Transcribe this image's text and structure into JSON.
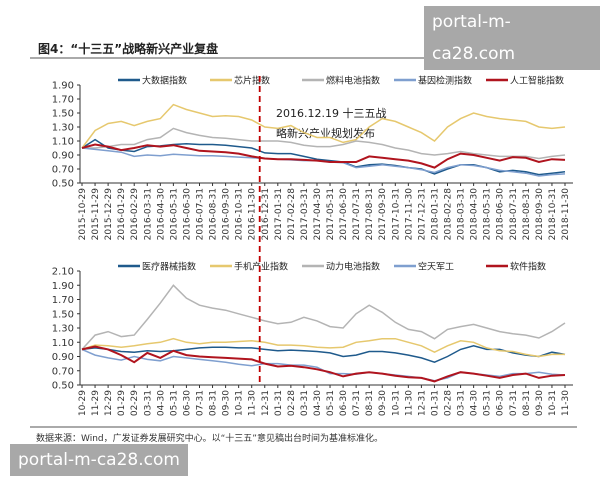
{
  "figure_title": "图4：“十三五”战略新兴产业复盘",
  "source_note": "数据来源：Wind，广发证券发展研究中心。以“十三五”意见稿出台时间为基准标准化。",
  "watermark": "portal-m-ca28.com",
  "event_marker": {
    "date": "2016-12-19",
    "label_line1": "2016.12.19 十三五战",
    "label_line2": "略新兴产业规划发布",
    "color": "#c00000"
  },
  "chart_data": [
    {
      "type": "line",
      "ylim": [
        0.5,
        1.9
      ],
      "yticks": [
        "1.90",
        "1.70",
        "1.50",
        "1.30",
        "1.10",
        "0.90",
        "0.70",
        "0.50"
      ],
      "x": [
        "2015-10-29",
        "2015-11-29",
        "2015-12-29",
        "2016-01-29",
        "2016-02-29",
        "2016-03-31",
        "2016-04-30",
        "2016-05-31",
        "2016-06-30",
        "2016-07-31",
        "2016-08-31",
        "2016-09-30",
        "2016-10-31",
        "2016-11-30",
        "2016-12-31",
        "2017-01-31",
        "2017-02-28",
        "2017-03-31",
        "2017-04-30",
        "2017-05-31",
        "2017-06-30",
        "2017-07-31",
        "2017-08-31",
        "2017-09-30",
        "2017-10-31",
        "2017-11-30",
        "2017-12-31",
        "2018-01-31",
        "2018-02-28",
        "2018-03-31",
        "2018-04-30",
        "2018-05-31",
        "2018-06-30",
        "2018-07-31",
        "2018-08-31",
        "2018-09-30",
        "2018-10-31",
        "2018-11-30"
      ],
      "legend": "top",
      "series": [
        {
          "name": "大数据指数",
          "color": "#1f5a8c",
          "values": [
            1.0,
            1.12,
            1.0,
            0.97,
            0.95,
            1.02,
            1.03,
            1.05,
            1.06,
            1.05,
            1.05,
            1.04,
            1.02,
            1.0,
            0.93,
            0.92,
            0.92,
            0.88,
            0.84,
            0.82,
            0.8,
            0.73,
            0.76,
            0.77,
            0.75,
            0.72,
            0.7,
            0.63,
            0.7,
            0.76,
            0.76,
            0.72,
            0.66,
            0.68,
            0.66,
            0.62,
            0.64,
            0.66
          ]
        },
        {
          "name": "芯片指数",
          "color": "#e6c86e",
          "values": [
            1.0,
            1.25,
            1.35,
            1.38,
            1.32,
            1.38,
            1.42,
            1.62,
            1.55,
            1.5,
            1.45,
            1.46,
            1.45,
            1.4,
            1.3,
            1.28,
            1.32,
            1.22,
            1.15,
            1.15,
            1.08,
            1.12,
            1.3,
            1.42,
            1.38,
            1.3,
            1.22,
            1.1,
            1.3,
            1.42,
            1.5,
            1.45,
            1.42,
            1.4,
            1.38,
            1.3,
            1.28,
            1.3
          ]
        },
        {
          "name": "燃料电池指数",
          "color": "#b4b4b4",
          "values": [
            1.0,
            1.0,
            1.02,
            1.05,
            1.05,
            1.12,
            1.15,
            1.28,
            1.22,
            1.18,
            1.15,
            1.14,
            1.12,
            1.1,
            1.1,
            1.1,
            1.08,
            1.04,
            1.02,
            1.02,
            1.05,
            1.1,
            1.08,
            1.05,
            1.0,
            0.97,
            0.92,
            0.9,
            0.92,
            0.95,
            0.92,
            0.9,
            0.88,
            0.88,
            0.88,
            0.85,
            0.88,
            0.9
          ]
        },
        {
          "name": "基因检测指数",
          "color": "#7f9fcf",
          "values": [
            1.0,
            0.98,
            0.96,
            0.94,
            0.88,
            0.9,
            0.89,
            0.91,
            0.9,
            0.89,
            0.89,
            0.88,
            0.87,
            0.86,
            0.85,
            0.84,
            0.83,
            0.82,
            0.82,
            0.8,
            0.79,
            0.72,
            0.74,
            0.76,
            0.74,
            0.72,
            0.69,
            0.65,
            0.72,
            0.76,
            0.75,
            0.72,
            0.68,
            0.66,
            0.64,
            0.6,
            0.62,
            0.63
          ]
        },
        {
          "name": "人工智能指数",
          "color": "#b0141e",
          "values": [
            1.0,
            1.05,
            1.02,
            0.97,
            1.0,
            1.04,
            1.02,
            1.04,
            1.0,
            0.96,
            0.95,
            0.94,
            0.92,
            0.88,
            0.85,
            0.84,
            0.84,
            0.83,
            0.82,
            0.8,
            0.8,
            0.8,
            0.88,
            0.86,
            0.84,
            0.82,
            0.78,
            0.72,
            0.84,
            0.92,
            0.9,
            0.86,
            0.82,
            0.87,
            0.86,
            0.8,
            0.84,
            0.83
          ]
        }
      ]
    },
    {
      "type": "line",
      "ylim": [
        0.5,
        2.1
      ],
      "yticks": [
        "2.10",
        "1.90",
        "1.70",
        "1.50",
        "1.30",
        "1.10",
        "0.90",
        "0.70",
        "0.50"
      ],
      "x": [
        "2015-10-29",
        "2015-11-29",
        "2015-12-29",
        "2016-01-29",
        "2016-02-29",
        "2016-03-31",
        "2016-04-30",
        "2016-05-31",
        "2016-06-30",
        "2016-07-31",
        "2016-08-31",
        "2016-09-30",
        "2016-10-31",
        "2016-11-30",
        "2016-12-31",
        "2017-01-31",
        "2017-02-28",
        "2017-03-31",
        "2017-04-30",
        "2017-05-31",
        "2017-06-30",
        "2017-07-31",
        "2017-08-31",
        "2017-09-30",
        "2017-10-31",
        "2017-11-30",
        "2017-12-31",
        "2018-01-31",
        "2018-02-28",
        "2018-03-31",
        "2018-04-30",
        "2018-05-31",
        "2018-06-30",
        "2018-07-31",
        "2018-08-31",
        "2018-09-30",
        "2018-10-31",
        "2018-11-30"
      ],
      "legend": "top",
      "series": [
        {
          "name": "医疗器械指数",
          "color": "#1f5a8c",
          "values": [
            1.0,
            1.02,
            1.0,
            0.97,
            0.96,
            0.98,
            0.97,
            0.98,
            1.0,
            1.02,
            1.03,
            1.03,
            1.02,
            1.02,
            1.0,
            0.98,
            0.99,
            0.98,
            0.97,
            0.95,
            0.9,
            0.92,
            0.97,
            0.97,
            0.95,
            0.92,
            0.88,
            0.82,
            0.9,
            1.0,
            1.05,
            1.0,
            1.0,
            0.95,
            0.92,
            0.9,
            0.96,
            0.93
          ]
        },
        {
          "name": "手机产业指数",
          "color": "#e6c86e",
          "values": [
            1.0,
            1.06,
            1.05,
            1.03,
            1.05,
            1.08,
            1.1,
            1.15,
            1.1,
            1.08,
            1.1,
            1.1,
            1.11,
            1.12,
            1.1,
            1.06,
            1.06,
            1.05,
            1.03,
            1.02,
            1.03,
            1.1,
            1.12,
            1.15,
            1.15,
            1.1,
            1.05,
            0.96,
            1.05,
            1.12,
            1.1,
            1.02,
            0.98,
            0.97,
            0.93,
            0.9,
            0.93,
            0.93
          ]
        },
        {
          "name": "动力电池指数",
          "color": "#b4b4b4",
          "values": [
            1.0,
            1.2,
            1.25,
            1.18,
            1.2,
            1.42,
            1.65,
            1.9,
            1.72,
            1.62,
            1.58,
            1.55,
            1.5,
            1.45,
            1.4,
            1.36,
            1.38,
            1.45,
            1.4,
            1.32,
            1.3,
            1.5,
            1.62,
            1.52,
            1.38,
            1.28,
            1.25,
            1.15,
            1.28,
            1.32,
            1.35,
            1.3,
            1.25,
            1.22,
            1.2,
            1.16,
            1.25,
            1.37
          ]
        },
        {
          "name": "空天军工",
          "color": "#7f9fcf",
          "values": [
            1.0,
            0.92,
            0.88,
            0.85,
            0.9,
            0.86,
            0.84,
            0.9,
            0.88,
            0.86,
            0.84,
            0.82,
            0.79,
            0.77,
            0.8,
            0.8,
            0.78,
            0.78,
            0.75,
            0.66,
            0.66,
            0.65,
            0.68,
            0.66,
            0.64,
            0.62,
            0.6,
            0.56,
            0.6,
            0.68,
            0.66,
            0.64,
            0.62,
            0.66,
            0.66,
            0.68,
            0.65,
            0.64
          ]
        },
        {
          "name": "软件指数",
          "color": "#b0141e",
          "values": [
            1.0,
            1.04,
            1.0,
            0.92,
            0.82,
            0.95,
            0.88,
            0.98,
            0.92,
            0.9,
            0.89,
            0.88,
            0.87,
            0.86,
            0.8,
            0.76,
            0.77,
            0.75,
            0.72,
            0.68,
            0.62,
            0.66,
            0.68,
            0.66,
            0.63,
            0.61,
            0.6,
            0.55,
            0.62,
            0.68,
            0.66,
            0.63,
            0.6,
            0.64,
            0.66,
            0.6,
            0.63,
            0.64
          ]
        }
      ]
    }
  ]
}
